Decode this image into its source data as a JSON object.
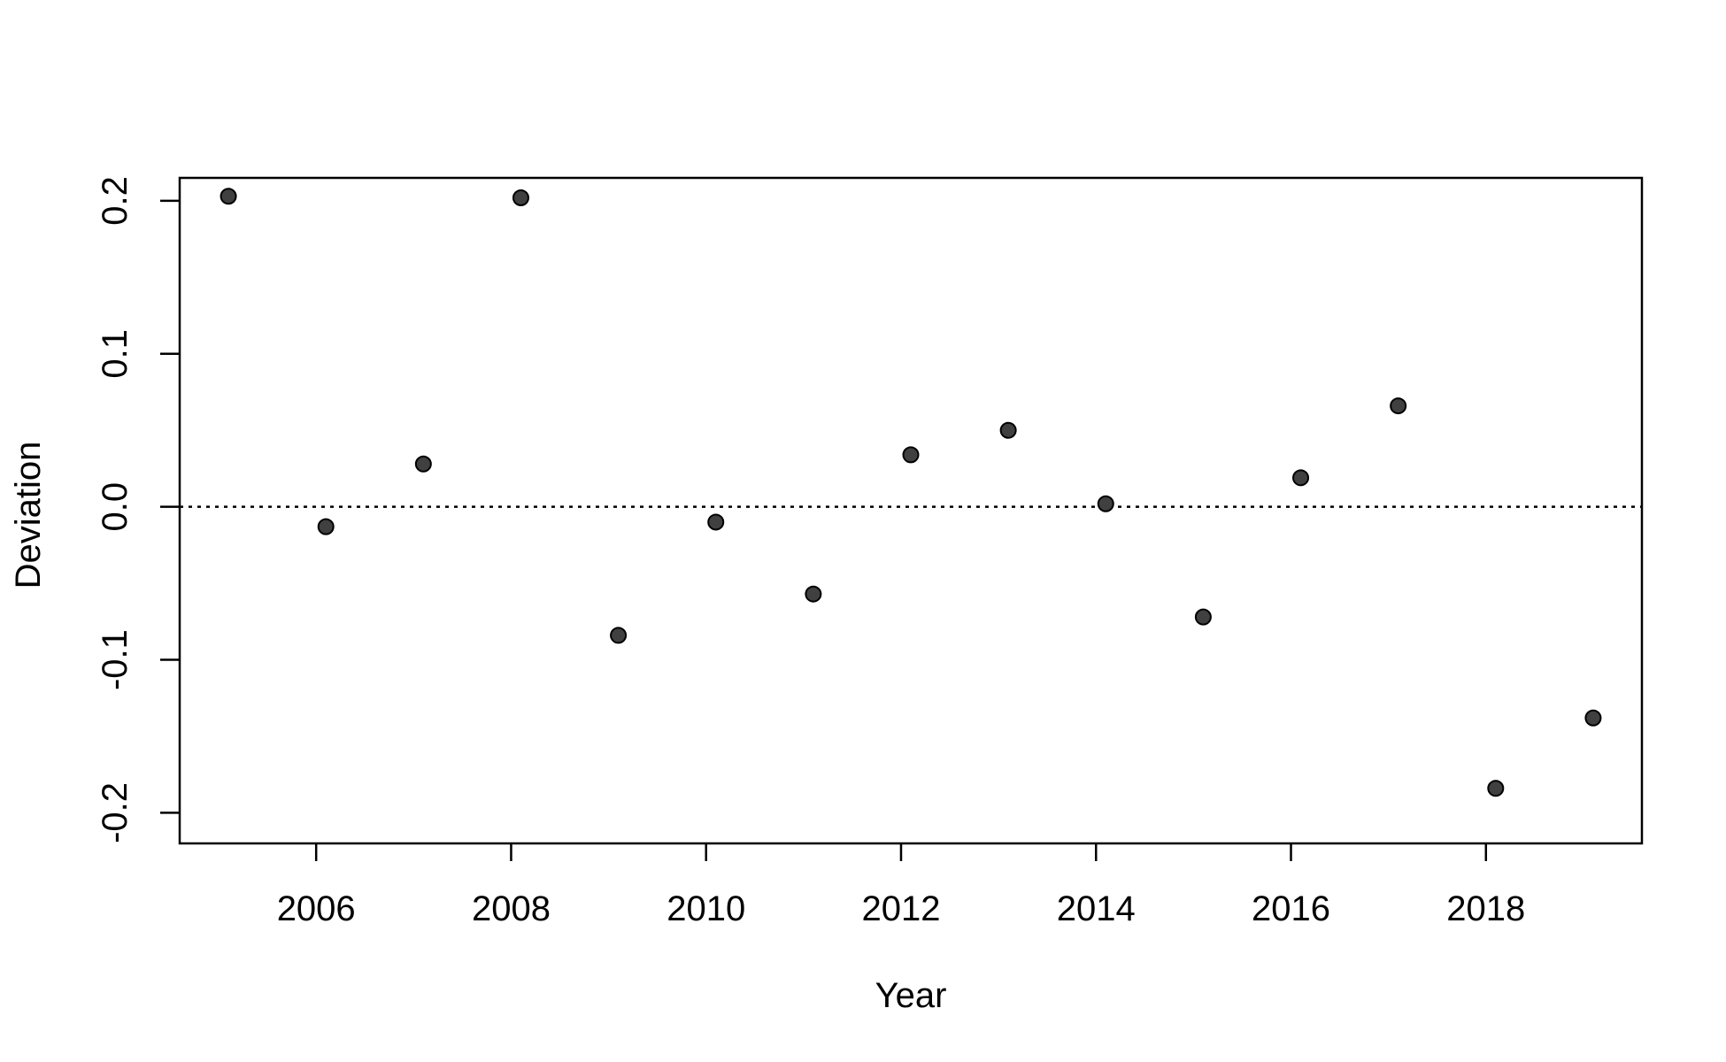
{
  "chart_data": {
    "type": "scatter",
    "title": "",
    "xlabel": "Year",
    "ylabel": "Deviation",
    "xlim": [
      2004.6,
      2019.6
    ],
    "ylim": [
      -0.22,
      0.215
    ],
    "x_ticks": [
      2006,
      2008,
      2010,
      2012,
      2014,
      2016,
      2018
    ],
    "x_tick_labels": [
      "2006",
      "2008",
      "2010",
      "2012",
      "2014",
      "2016",
      "2018"
    ],
    "y_ticks": [
      -0.2,
      -0.1,
      0.0,
      0.1,
      0.2
    ],
    "y_tick_labels": [
      "-0.2",
      "-0.1",
      "0.0",
      "0.1",
      "0.2"
    ],
    "grid": false,
    "legend": "none",
    "reference_line": {
      "y": 0.0,
      "style": "dotted"
    },
    "point_color": "#404040",
    "series": [
      {
        "x": [
          2005.1,
          2006.1,
          2007.1,
          2008.1,
          2009.1,
          2010.1,
          2011.1,
          2012.1,
          2013.1,
          2014.1,
          2015.1,
          2016.1,
          2017.1,
          2018.1,
          2019.1
        ],
        "y": [
          0.203,
          -0.013,
          0.028,
          0.202,
          -0.084,
          -0.01,
          -0.057,
          0.034,
          0.05,
          0.002,
          -0.072,
          0.019,
          0.066,
          -0.184,
          -0.138
        ]
      }
    ]
  }
}
